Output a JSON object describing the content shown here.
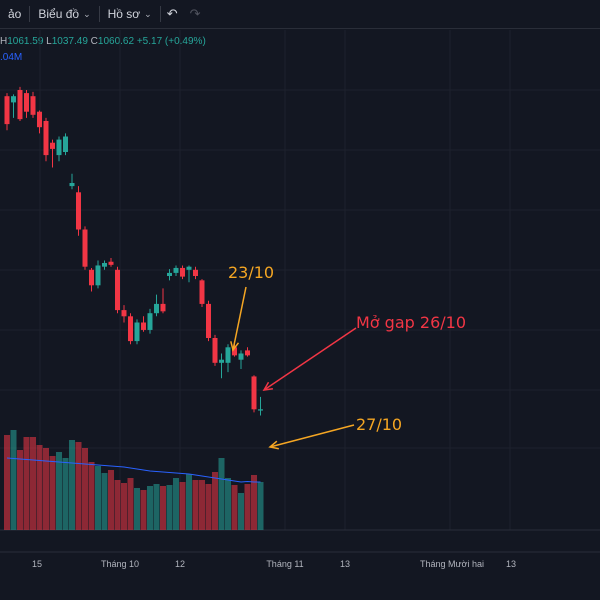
{
  "toolbar": {
    "items": [
      {
        "label": "ảo",
        "chevron": false
      },
      {
        "label": "Biểu đồ",
        "chevron": true
      },
      {
        "label": "Hồ sơ",
        "chevron": true
      }
    ],
    "undo_icon": "undo-icon",
    "redo_icon": "redo-icon"
  },
  "legend": {
    "h_key": "H",
    "h_val": "1061.59",
    "l_key": "L",
    "l_val": "1037.49",
    "c_key": "C",
    "c_val": "1060.62",
    "change": "+5.17 (+0.49%)",
    "volume": ".04M"
  },
  "colors": {
    "up": "#26a69a",
    "down": "#f23645",
    "ma": "#2962ff",
    "annot_orange": "#f5a623",
    "annot_red": "#f23645"
  },
  "chart_data": {
    "type": "candlestick",
    "x_tick_labels": [
      "15",
      "Tháng 10",
      "12",
      "Tháng 11",
      "13",
      "Tháng Mười hai",
      "13"
    ],
    "candles": [
      {
        "o": 1335,
        "h": 1340,
        "l": 1280,
        "c": 1290
      },
      {
        "o": 1325,
        "h": 1338,
        "l": 1300,
        "c": 1335
      },
      {
        "o": 1345,
        "h": 1350,
        "l": 1295,
        "c": 1298
      },
      {
        "o": 1340,
        "h": 1345,
        "l": 1300,
        "c": 1310
      },
      {
        "o": 1335,
        "h": 1342,
        "l": 1300,
        "c": 1305
      },
      {
        "o": 1310,
        "h": 1312,
        "l": 1275,
        "c": 1285
      },
      {
        "o": 1295,
        "h": 1300,
        "l": 1230,
        "c": 1240
      },
      {
        "o": 1260,
        "h": 1265,
        "l": 1220,
        "c": 1250
      },
      {
        "o": 1240,
        "h": 1270,
        "l": 1230,
        "c": 1265
      },
      {
        "o": 1245,
        "h": 1275,
        "l": 1240,
        "c": 1270
      },
      {
        "o": 1190,
        "h": 1210,
        "l": 1185,
        "c": 1195
      },
      {
        "o": 1180,
        "h": 1190,
        "l": 1110,
        "c": 1120
      },
      {
        "o": 1120,
        "h": 1125,
        "l": 1055,
        "c": 1060
      },
      {
        "o": 1055,
        "h": 1058,
        "l": 1020,
        "c": 1030
      },
      {
        "o": 1030,
        "h": 1070,
        "l": 1025,
        "c": 1062
      },
      {
        "o": 1060,
        "h": 1070,
        "l": 1055,
        "c": 1066
      },
      {
        "o": 1068,
        "h": 1074,
        "l": 1060,
        "c": 1063
      },
      {
        "o": 1055,
        "h": 1060,
        "l": 985,
        "c": 990
      },
      {
        "o": 990,
        "h": 998,
        "l": 970,
        "c": 980
      },
      {
        "o": 980,
        "h": 985,
        "l": 935,
        "c": 940
      },
      {
        "o": 940,
        "h": 975,
        "l": 935,
        "c": 970
      },
      {
        "o": 970,
        "h": 980,
        "l": 955,
        "c": 958
      },
      {
        "o": 958,
        "h": 992,
        "l": 952,
        "c": 985
      },
      {
        "o": 985,
        "h": 1015,
        "l": 980,
        "c": 1000
      },
      {
        "o": 1000,
        "h": 1025,
        "l": 985,
        "c": 988
      },
      {
        "o": 1045,
        "h": 1056,
        "l": 1038,
        "c": 1050
      },
      {
        "o": 1050,
        "h": 1062,
        "l": 1045,
        "c": 1058
      },
      {
        "o": 1058,
        "h": 1062,
        "l": 1040,
        "c": 1044
      },
      {
        "o": 1055,
        "h": 1062,
        "l": 1035,
        "c": 1060
      },
      {
        "o": 1055,
        "h": 1060,
        "l": 1040,
        "c": 1045
      },
      {
        "o": 1038,
        "h": 1040,
        "l": 995,
        "c": 1000
      },
      {
        "o": 1000,
        "h": 1005,
        "l": 940,
        "c": 945
      },
      {
        "o": 945,
        "h": 950,
        "l": 900,
        "c": 905
      },
      {
        "o": 905,
        "h": 920,
        "l": 880,
        "c": 910
      },
      {
        "o": 905,
        "h": 935,
        "l": 890,
        "c": 930
      },
      {
        "o": 930,
        "h": 937,
        "l": 915,
        "c": 917
      },
      {
        "o": 910,
        "h": 925,
        "l": 895,
        "c": 920
      },
      {
        "o": 925,
        "h": 930,
        "l": 915,
        "c": 917
      },
      {
        "o": 883,
        "h": 885,
        "l": 825,
        "c": 830
      },
      {
        "o": 828,
        "h": 850,
        "l": 820,
        "c": 830
      }
    ],
    "volumes": [
      95,
      100,
      80,
      93,
      93,
      85,
      82,
      74,
      78,
      72,
      90,
      88,
      82,
      68,
      64,
      57,
      60,
      50,
      47,
      52,
      42,
      40,
      44,
      46,
      44,
      45,
      52,
      48,
      56,
      50,
      50,
      46,
      58,
      72,
      52,
      45,
      37,
      46,
      55,
      48
    ],
    "ma": [
      72,
      71.5,
      71,
      70.5,
      70,
      69.5,
      69,
      68.5,
      68,
      67.5,
      67,
      66.5,
      66,
      65.5,
      65,
      64.5,
      64,
      63.5,
      63,
      62,
      61,
      60,
      59,
      58.5,
      58,
      57.5,
      57,
      56.5,
      56,
      55,
      54,
      53,
      52,
      51,
      50,
      49,
      48,
      48.5,
      48,
      48
    ],
    "annotations": [
      {
        "text": "23/10",
        "target": 27
      },
      {
        "text": "Mở gap 26/10",
        "target": 38
      },
      {
        "text": "27/10",
        "target": 39
      }
    ]
  }
}
